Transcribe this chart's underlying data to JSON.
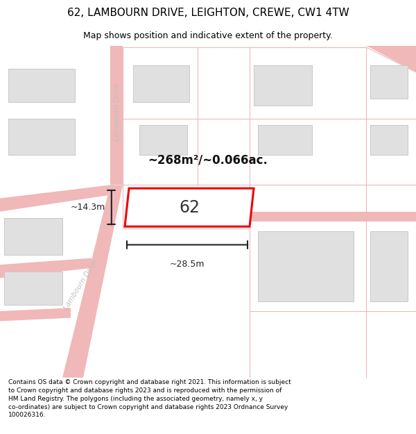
{
  "title": "62, LAMBOURN DRIVE, LEIGHTON, CREWE, CW1 4TW",
  "subtitle": "Map shows position and indicative extent of the property.",
  "footer": "Contains OS data © Crown copyright and database right 2021. This information is subject to Crown copyright and database rights 2023 and is reproduced with the permission of HM Land Registry. The polygons (including the associated geometry, namely x, y co-ordinates) are subject to Crown copyright and database rights 2023 Ordnance Survey 100026316.",
  "bg_color": "#ffffff",
  "road_color": "#f0b8b8",
  "building_fill": "#e0e0e0",
  "building_edge": "#c8c8c8",
  "highlight_color": "#ee0000",
  "highlight_fill": "#ffffff",
  "road_label_color": "#c0c0c0",
  "dim_color": "#222222",
  "area_text": "~268m²/~0.066ac.",
  "plot_label": "62",
  "dim_width": "~28.5m",
  "dim_height": "~14.3m",
  "title_fontsize": 11,
  "subtitle_fontsize": 9,
  "footer_fontsize": 6.5
}
